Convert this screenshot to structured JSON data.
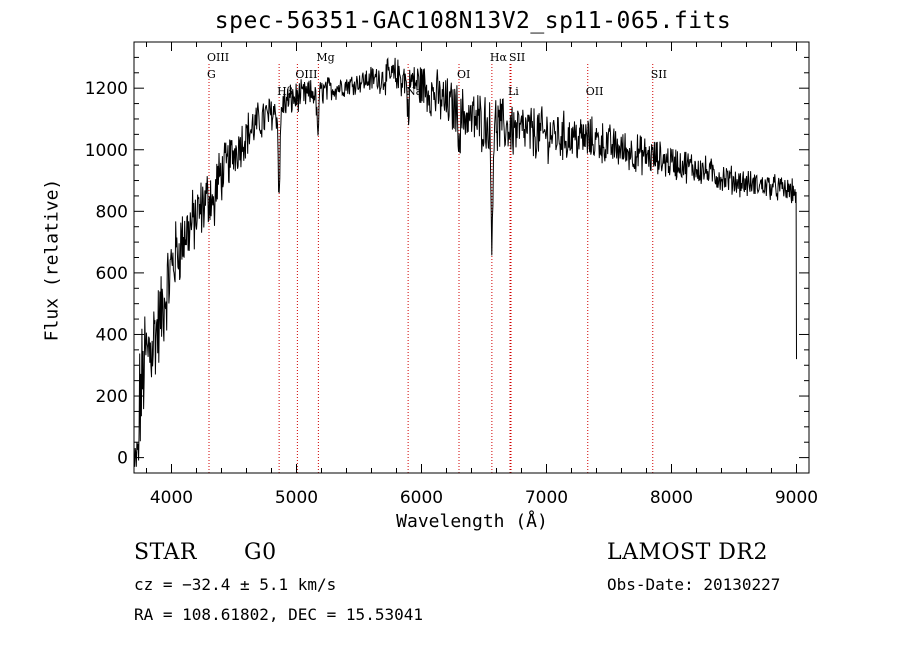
{
  "chart_data": {
    "type": "line",
    "title": "spec-56351-GAC108N13V2_sp11-065.fits",
    "xlabel": "Wavelength (Å)",
    "ylabel": "Flux (relative)",
    "xlim": [
      3700,
      9100
    ],
    "ylim": [
      -50,
      1350
    ],
    "xticks": [
      4000,
      5000,
      6000,
      7000,
      8000,
      9000
    ],
    "yticks": [
      0,
      200,
      400,
      600,
      800,
      1000,
      1200
    ],
    "continuum": [
      [
        3720,
        80
      ],
      [
        3780,
        300
      ],
      [
        3850,
        380
      ],
      [
        3900,
        430
      ],
      [
        3950,
        520
      ],
      [
        4000,
        620
      ],
      [
        4100,
        720
      ],
      [
        4200,
        780
      ],
      [
        4300,
        850
      ],
      [
        4400,
        920
      ],
      [
        4500,
        990
      ],
      [
        4600,
        1050
      ],
      [
        4700,
        1090
      ],
      [
        4800,
        1120
      ],
      [
        4900,
        1150
      ],
      [
        5000,
        1170
      ],
      [
        5200,
        1190
      ],
      [
        5400,
        1210
      ],
      [
        5600,
        1230
      ],
      [
        5800,
        1240
      ],
      [
        6000,
        1210
      ],
      [
        6200,
        1150
      ],
      [
        6400,
        1100
      ],
      [
        6600,
        1080
      ],
      [
        6800,
        1060
      ],
      [
        7000,
        1050
      ],
      [
        7200,
        1040
      ],
      [
        7400,
        1030
      ],
      [
        7600,
        1000
      ],
      [
        7800,
        980
      ],
      [
        8000,
        960
      ],
      [
        8200,
        940
      ],
      [
        8400,
        910
      ],
      [
        8600,
        890
      ],
      [
        8800,
        880
      ],
      [
        9000,
        860
      ]
    ],
    "noise_scale": [
      [
        3720,
        180
      ],
      [
        4000,
        110
      ],
      [
        4500,
        70
      ],
      [
        5000,
        45
      ],
      [
        5500,
        30
      ],
      [
        6000,
        70
      ],
      [
        6500,
        85
      ],
      [
        7000,
        75
      ],
      [
        7500,
        60
      ],
      [
        8000,
        50
      ],
      [
        8500,
        40
      ],
      [
        9000,
        35
      ]
    ],
    "absorption_features": [
      {
        "x": 4861,
        "depth": 270
      },
      {
        "x": 5170,
        "depth": 130
      },
      {
        "x": 5893,
        "depth": 100
      },
      {
        "x": 6563,
        "depth": 330
      },
      {
        "x": 6305,
        "depth": 80
      },
      {
        "x": 4340,
        "depth": 90
      }
    ],
    "line_markers": [
      {
        "label": "OIII",
        "x": 4300,
        "tier": 0
      },
      {
        "label": "G",
        "x": 4300,
        "tier": 1
      },
      {
        "label": "Mg",
        "x": 5175,
        "tier": 0
      },
      {
        "label": "OIII",
        "x": 5007,
        "tier": 2
      },
      {
        "label": "Hβ",
        "x": 4861,
        "tier": 3
      },
      {
        "label": "Na",
        "x": 5893,
        "tier": 3
      },
      {
        "label": "OI",
        "x": 6300,
        "tier": 2
      },
      {
        "label": "Hα",
        "x": 6563,
        "tier": 0
      },
      {
        "label": "SII",
        "x": 6716,
        "tier": 0
      },
      {
        "label": "Li",
        "x": 6708,
        "tier": 3
      },
      {
        "label": "OII",
        "x": 7330,
        "tier": 3
      },
      {
        "label": "SII",
        "x": 7850,
        "tier": 2
      }
    ],
    "grid": false,
    "colors": {
      "line": "#000000",
      "marker": "#d00000"
    }
  },
  "info": {
    "class_label": "STAR",
    "subclass": "G0",
    "survey": "LAMOST DR2",
    "cz": "cz = −32.4 ± 5.1 km/s",
    "obs_date": "Obs-Date: 20130227",
    "coords": "RA = 108.61802, DEC =  15.53041"
  }
}
